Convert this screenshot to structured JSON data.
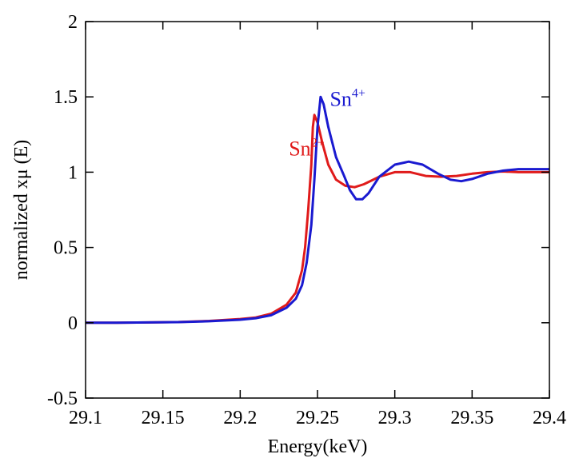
{
  "chart_data": {
    "type": "line",
    "title": "",
    "xlabel": "Energy(keV)",
    "ylabel": "normalized xμ (E)",
    "xlim": [
      29.1,
      29.4
    ],
    "ylim": [
      -0.5,
      2
    ],
    "grid": false,
    "x_ticks": [
      {
        "value": 29.1,
        "label": "29.1"
      },
      {
        "value": 29.15,
        "label": "29.15"
      },
      {
        "value": 29.2,
        "label": "29.2"
      },
      {
        "value": 29.25,
        "label": "29.25"
      },
      {
        "value": 29.3,
        "label": "29.3"
      },
      {
        "value": 29.35,
        "label": "29.35"
      },
      {
        "value": 29.4,
        "label": "29.4"
      }
    ],
    "y_ticks": [
      {
        "value": -0.5,
        "label": "-0.5"
      },
      {
        "value": 0,
        "label": "0"
      },
      {
        "value": 0.5,
        "label": "0.5"
      },
      {
        "value": 1,
        "label": "1"
      },
      {
        "value": 1.5,
        "label": "1.5"
      },
      {
        "value": 2,
        "label": "2"
      }
    ],
    "series": [
      {
        "name": "Sn2+",
        "label_base": "Sn",
        "label_sup": "2+",
        "label_anchor": [
          29.2315,
          1.11
        ],
        "color": "#e01b1b",
        "points": [
          [
            29.1,
            0.0
          ],
          [
            29.12,
            0.0
          ],
          [
            29.14,
            0.002
          ],
          [
            29.16,
            0.005
          ],
          [
            29.18,
            0.012
          ],
          [
            29.2,
            0.025
          ],
          [
            29.21,
            0.035
          ],
          [
            29.22,
            0.06
          ],
          [
            29.23,
            0.12
          ],
          [
            29.236,
            0.2
          ],
          [
            29.24,
            0.35
          ],
          [
            29.242,
            0.5
          ],
          [
            29.244,
            0.75
          ],
          [
            29.246,
            1.05
          ],
          [
            29.247,
            1.3
          ],
          [
            29.248,
            1.38
          ],
          [
            29.25,
            1.33
          ],
          [
            29.253,
            1.2
          ],
          [
            29.257,
            1.05
          ],
          [
            29.262,
            0.95
          ],
          [
            29.268,
            0.91
          ],
          [
            29.274,
            0.9
          ],
          [
            29.28,
            0.92
          ],
          [
            29.29,
            0.97
          ],
          [
            29.3,
            1.0
          ],
          [
            29.31,
            1.0
          ],
          [
            29.32,
            0.975
          ],
          [
            29.33,
            0.97
          ],
          [
            29.34,
            0.975
          ],
          [
            29.35,
            0.99
          ],
          [
            29.36,
            1.0
          ],
          [
            29.37,
            1.005
          ],
          [
            29.38,
            1.0
          ],
          [
            29.39,
            1.0
          ],
          [
            29.4,
            1.0
          ]
        ]
      },
      {
        "name": "Sn4+",
        "label_base": "Sn",
        "label_sup": "4+",
        "label_anchor": [
          29.258,
          1.44
        ],
        "color": "#1a1ad0",
        "points": [
          [
            29.1,
            0.0
          ],
          [
            29.12,
            0.0
          ],
          [
            29.14,
            0.002
          ],
          [
            29.16,
            0.004
          ],
          [
            29.18,
            0.01
          ],
          [
            29.2,
            0.02
          ],
          [
            29.21,
            0.03
          ],
          [
            29.22,
            0.05
          ],
          [
            29.23,
            0.1
          ],
          [
            29.236,
            0.16
          ],
          [
            29.24,
            0.25
          ],
          [
            29.243,
            0.4
          ],
          [
            29.246,
            0.65
          ],
          [
            29.248,
            0.95
          ],
          [
            29.25,
            1.3
          ],
          [
            29.252,
            1.5
          ],
          [
            29.254,
            1.45
          ],
          [
            29.257,
            1.3
          ],
          [
            29.262,
            1.1
          ],
          [
            29.267,
            0.98
          ],
          [
            29.271,
            0.88
          ],
          [
            29.275,
            0.82
          ],
          [
            29.279,
            0.82
          ],
          [
            29.283,
            0.86
          ],
          [
            29.29,
            0.97
          ],
          [
            29.3,
            1.05
          ],
          [
            29.309,
            1.07
          ],
          [
            29.318,
            1.05
          ],
          [
            29.328,
            0.99
          ],
          [
            29.336,
            0.95
          ],
          [
            29.343,
            0.94
          ],
          [
            29.35,
            0.955
          ],
          [
            29.36,
            0.99
          ],
          [
            29.37,
            1.01
          ],
          [
            29.38,
            1.02
          ],
          [
            29.39,
            1.02
          ],
          [
            29.4,
            1.02
          ]
        ]
      }
    ]
  }
}
